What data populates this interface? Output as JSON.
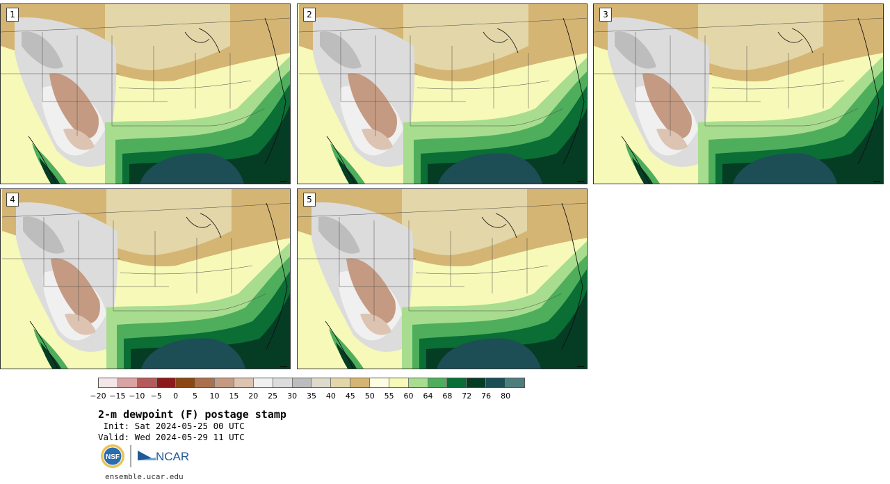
{
  "panels": [
    {
      "label": "1"
    },
    {
      "label": "2"
    },
    {
      "label": "3"
    },
    {
      "label": "4"
    },
    {
      "label": "5"
    }
  ],
  "colorbar": {
    "colors": [
      "#f4e6e6",
      "#d9a3a3",
      "#b55a5a",
      "#8c1a1a",
      "#8a4714",
      "#a9714e",
      "#c49b82",
      "#dcc3b2",
      "#f0f0f0",
      "#dcdcdc",
      "#bdbdbd",
      "#dedbcc",
      "#e3d6a8",
      "#d5b574",
      "#fdfde2",
      "#f6f9b8",
      "#a8dd8f",
      "#4fae5c",
      "#0a6e35",
      "#053c24",
      "#1d4d55",
      "#4e7d7d"
    ],
    "tick_labels": [
      "−20",
      "−15",
      "−10",
      "−5",
      "0",
      "5",
      "10",
      "15",
      "20",
      "25",
      "30",
      "35",
      "40",
      "45",
      "50",
      "55",
      "60",
      "64",
      "68",
      "72",
      "76",
      "80"
    ]
  },
  "title": "2-m dewpoint (F) postage stamp",
  "init": " Init: Sat 2024-05-25 00 UTC",
  "valid": "Valid: Wed 2024-05-29 11 UTC",
  "logos": {
    "nsf": "NSF",
    "ncar": "NCAR"
  },
  "footer_url": "ensemble.ucar.edu"
}
